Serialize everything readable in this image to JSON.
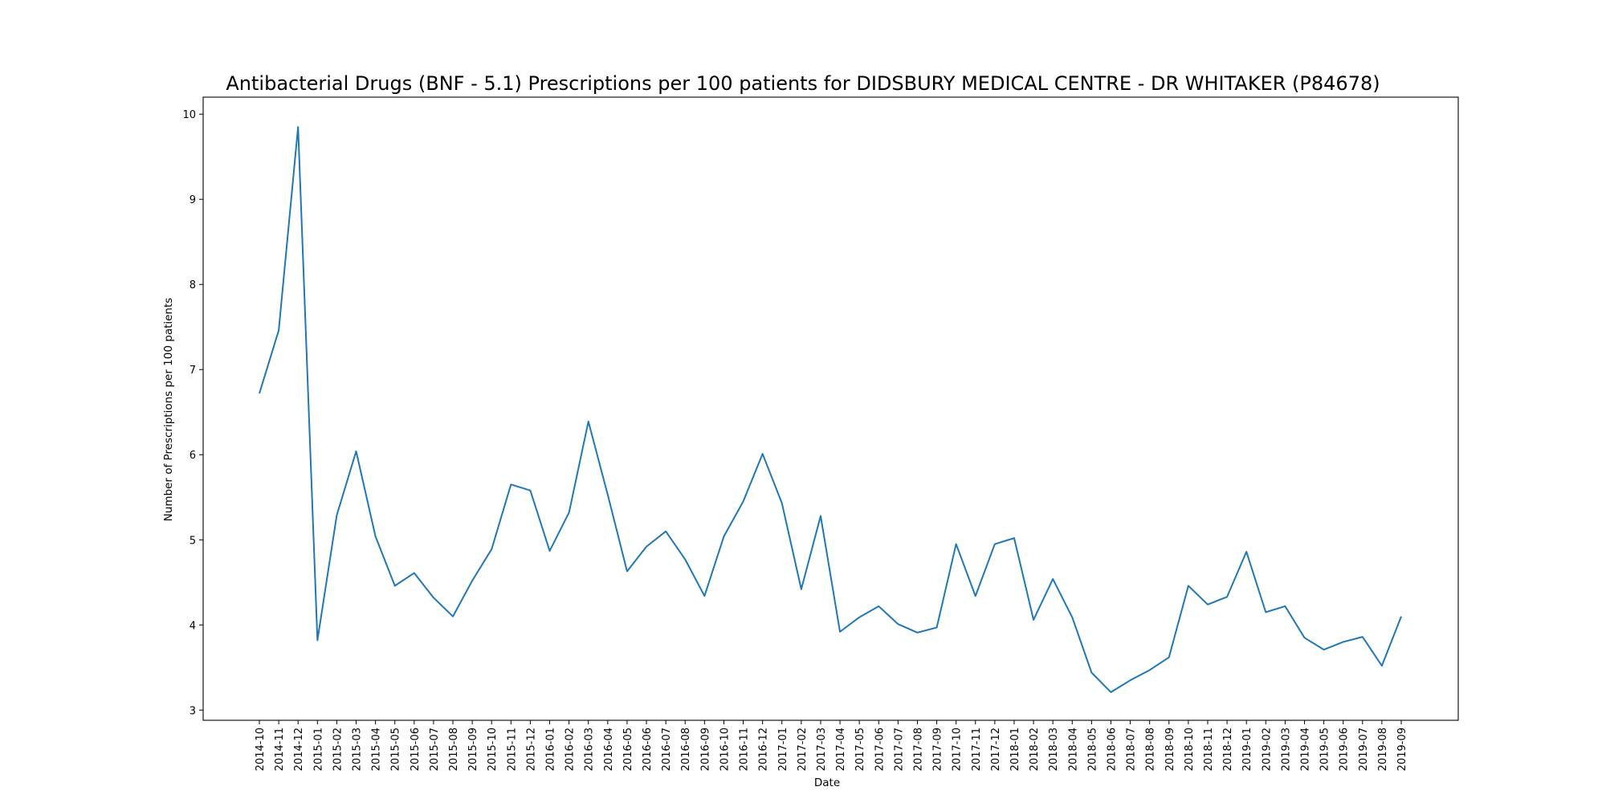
{
  "chart_data": {
    "type": "line",
    "title": "Antibacterial Drugs (BNF - 5.1) Prescriptions per 100 patients for DIDSBURY MEDICAL CENTRE - DR WHITAKER (P84678)",
    "xlabel": "Date",
    "ylabel": "Number of Prescriptions per 100 patients",
    "ylim": [
      2.88,
      10.2
    ],
    "yticks": [
      3,
      4,
      5,
      6,
      7,
      8,
      9,
      10
    ],
    "grid": false,
    "line_color": "#1f77b4",
    "categories": [
      "2014-10",
      "2014-11",
      "2014-12",
      "2015-01",
      "2015-02",
      "2015-03",
      "2015-04",
      "2015-05",
      "2015-06",
      "2015-07",
      "2015-08",
      "2015-09",
      "2015-10",
      "2015-11",
      "2015-12",
      "2016-01",
      "2016-02",
      "2016-03",
      "2016-04",
      "2016-05",
      "2016-06",
      "2016-07",
      "2016-08",
      "2016-09",
      "2016-10",
      "2016-11",
      "2016-12",
      "2017-01",
      "2017-02",
      "2017-03",
      "2017-04",
      "2017-05",
      "2017-06",
      "2017-07",
      "2017-08",
      "2017-09",
      "2017-10",
      "2017-11",
      "2017-12",
      "2018-01",
      "2018-02",
      "2018-03",
      "2018-04",
      "2018-05",
      "2018-06",
      "2018-07",
      "2018-08",
      "2018-09",
      "2018-10",
      "2018-11",
      "2018-12",
      "2019-01",
      "2019-02",
      "2019-03",
      "2019-04",
      "2019-05",
      "2019-06",
      "2019-07",
      "2019-08",
      "2019-09"
    ],
    "values": [
      6.72,
      7.46,
      9.85,
      3.82,
      5.29,
      6.04,
      5.04,
      4.46,
      4.61,
      4.32,
      4.1,
      4.52,
      4.89,
      5.65,
      5.58,
      4.87,
      5.32,
      6.39,
      5.53,
      4.63,
      4.92,
      5.1,
      4.77,
      4.34,
      5.04,
      5.45,
      6.01,
      5.43,
      4.42,
      5.28,
      3.92,
      4.09,
      4.22,
      4.01,
      3.91,
      3.97,
      4.95,
      4.34,
      4.95,
      5.02,
      4.06,
      4.54,
      4.09,
      3.44,
      3.21,
      3.35,
      3.47,
      3.62,
      4.46,
      4.24,
      4.33,
      4.86,
      4.15,
      4.22,
      3.85,
      3.71,
      3.8,
      3.86,
      3.52,
      4.1
    ]
  }
}
